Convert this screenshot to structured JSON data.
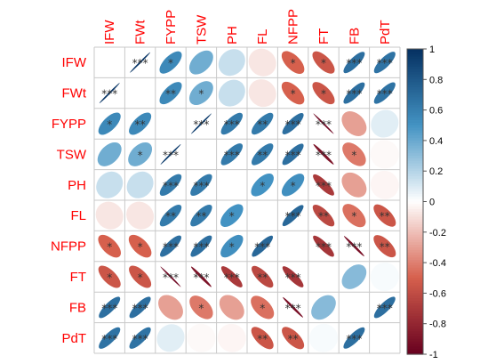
{
  "chart_data": {
    "type": "heatmap",
    "variables": [
      "IFW",
      "FWt",
      "FYPP",
      "TSW",
      "PH",
      "FL",
      "NFPP",
      "FT",
      "FB",
      "PdT"
    ],
    "matrix": [
      [
        null,
        0.98,
        0.55,
        0.38,
        0.15,
        -0.08,
        -0.5,
        -0.55,
        0.68,
        0.66
      ],
      [
        0.98,
        null,
        0.55,
        0.38,
        0.15,
        -0.08,
        -0.5,
        -0.55,
        0.68,
        0.66
      ],
      [
        0.55,
        0.55,
        null,
        0.95,
        0.62,
        0.62,
        0.68,
        -0.96,
        -0.3,
        0.08
      ],
      [
        0.38,
        0.38,
        0.95,
        null,
        0.62,
        0.62,
        0.68,
        -0.9,
        -0.42,
        -0.02
      ],
      [
        0.15,
        0.15,
        0.62,
        0.62,
        null,
        0.5,
        0.52,
        -0.7,
        -0.3,
        -0.03
      ],
      [
        -0.08,
        -0.08,
        0.62,
        0.62,
        0.5,
        null,
        0.72,
        -0.62,
        -0.45,
        -0.55
      ],
      [
        -0.5,
        -0.5,
        0.68,
        0.68,
        0.52,
        0.72,
        null,
        -0.72,
        -0.92,
        -0.55
      ],
      [
        -0.55,
        -0.55,
        -0.96,
        -0.9,
        -0.7,
        -0.62,
        -0.72,
        null,
        0.32,
        0.02
      ],
      [
        0.68,
        0.68,
        -0.3,
        -0.42,
        -0.3,
        -0.45,
        -0.92,
        0.32,
        null,
        0.68
      ],
      [
        0.66,
        0.66,
        0.08,
        -0.02,
        -0.03,
        -0.55,
        -0.55,
        0.02,
        0.68,
        null
      ]
    ],
    "significance": [
      [
        "",
        "***",
        "*",
        "",
        "",
        "",
        "*",
        "*",
        "***",
        "***"
      ],
      [
        "***",
        "",
        "**",
        "*",
        "",
        "",
        "*",
        "*",
        "***",
        "***"
      ],
      [
        "*",
        "**",
        "",
        "***",
        "***",
        "**",
        "***",
        "***",
        "",
        ""
      ],
      [
        "",
        "*",
        "***",
        "",
        "***",
        "**",
        "***",
        "***",
        "*",
        ""
      ],
      [
        "",
        "",
        "***",
        "***",
        "",
        "*",
        "*",
        "***",
        "",
        ""
      ],
      [
        "",
        "",
        "**",
        "**",
        "*",
        "",
        "***",
        "**",
        "*",
        "**"
      ],
      [
        "*",
        "*",
        "***",
        "***",
        "*",
        "***",
        "",
        "***",
        "***",
        "**"
      ],
      [
        "*",
        "*",
        "***",
        "***",
        "***",
        "**",
        "***",
        "",
        "",
        ""
      ],
      [
        "***",
        "***",
        "",
        "*",
        "",
        "*",
        "***",
        "",
        "",
        "***"
      ],
      [
        "***",
        "***",
        "",
        "",
        "",
        "**",
        "**",
        "",
        "***",
        ""
      ]
    ],
    "colorbar": {
      "ticks": [
        "1",
        "0.8",
        "0.6",
        "0.4",
        "0.2",
        "0",
        "-0.2",
        "-0.4",
        "-0.6",
        "-0.8",
        "-1"
      ],
      "range": [
        -1,
        1
      ]
    },
    "colors": {
      "negative_strong": "#67001f",
      "negative_mid": "#d6604d",
      "neutral": "#ffffff",
      "positive_mid": "#4393c3",
      "positive_strong": "#053061",
      "label": "#ff0000",
      "grid": "#c8c8c8",
      "star": "#333333"
    }
  }
}
